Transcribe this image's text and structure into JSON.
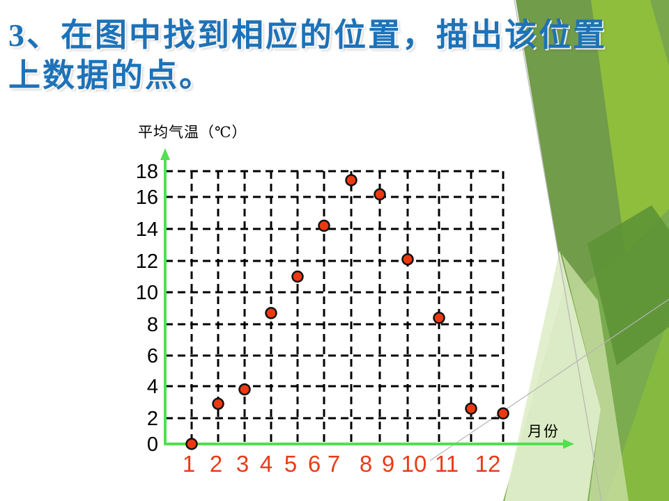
{
  "slide": {
    "title_line1": "3、在图中找到相应的位置，描出该位置",
    "title_line2": "上数据的点。"
  },
  "chart_data": {
    "type": "scatter",
    "title": "",
    "y_axis_title": "平均气温（℃）",
    "x_axis_title": "月份",
    "x": [
      1,
      2,
      3,
      4,
      5,
      6,
      7,
      8,
      9,
      10,
      11,
      12
    ],
    "values": [
      0,
      2.9,
      3.8,
      8.7,
      11,
      14.2,
      17.3,
      16.2,
      12.1,
      8.4,
      2.6,
      2.3
    ],
    "x_tick_labels": [
      "1",
      "2",
      "3",
      "4",
      "5",
      "6",
      "7",
      "8",
      "9",
      "10",
      "11",
      "12"
    ],
    "y_tick_labels": [
      "0",
      "2",
      "4",
      "6",
      "8",
      "10",
      "12",
      "14",
      "16",
      "18"
    ],
    "xlim": [
      0,
      12
    ],
    "ylim": [
      0,
      18
    ],
    "grid": "dashed-black",
    "legend": "none",
    "point_style": "red-filled-circle-black-outline",
    "axis_style": "green-arrows"
  },
  "colors": {
    "background": "#ffffff",
    "title_blue": "#1d72b8",
    "text_black": "#000000",
    "grid_black": "#000000",
    "axis_green": "#50e050",
    "point_red": "#ee3910",
    "point_outline": "#111111",
    "x_label_red": "#e83c18",
    "decor_olive": "#719c4a",
    "decor_bright": "#8fbe3d",
    "decor_bright2": "#85b940",
    "decor_medium": "#7bab4f",
    "decor_dark": "#5d9336",
    "decor_pale": "#e0eecb",
    "decor_pale2": "#c9dfa3",
    "decor_sliver": "#7aa74b",
    "decor_line_gray": "#b5b5b5"
  }
}
